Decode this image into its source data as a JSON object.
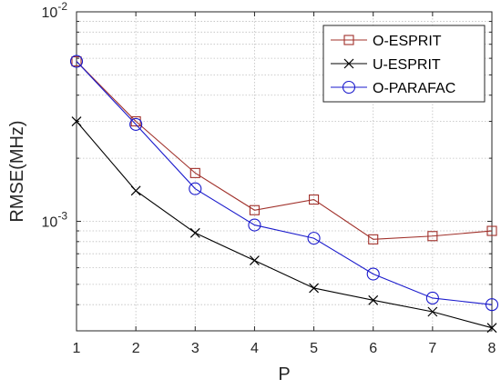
{
  "chart_data": {
    "type": "line",
    "xlabel": "P",
    "ylabel": "RMSE(MHz)",
    "x": [
      1,
      2,
      3,
      4,
      5,
      6,
      7,
      8
    ],
    "xticks": [
      "1",
      "2",
      "3",
      "4",
      "5",
      "6",
      "7",
      "8"
    ],
    "xlim": [
      1,
      8
    ],
    "yscale": "log",
    "ylim": [
      0.0003,
      0.01
    ],
    "yticks": [
      {
        "value": 0.001,
        "base": "10",
        "exp": "-3"
      },
      {
        "value": 0.01,
        "base": "10",
        "exp": "-2"
      }
    ],
    "grid": true,
    "legend_position": "top-right",
    "series": [
      {
        "name": "O-ESPRIT",
        "color": "#a0302a",
        "marker": "square",
        "values": [
          0.0058,
          0.003,
          0.0017,
          0.00113,
          0.00127,
          0.00082,
          0.00085,
          0.0009
        ]
      },
      {
        "name": "U-ESPRIT",
        "color": "#000000",
        "marker": "x",
        "values": [
          0.003,
          0.0014,
          0.00088,
          0.00065,
          0.00048,
          0.00042,
          0.00037,
          0.00031
        ]
      },
      {
        "name": "O-PARAFAC",
        "color": "#1a1acc",
        "marker": "circle",
        "values": [
          0.0058,
          0.0029,
          0.00143,
          0.00096,
          0.00083,
          0.00056,
          0.00043,
          0.0004
        ]
      }
    ]
  }
}
